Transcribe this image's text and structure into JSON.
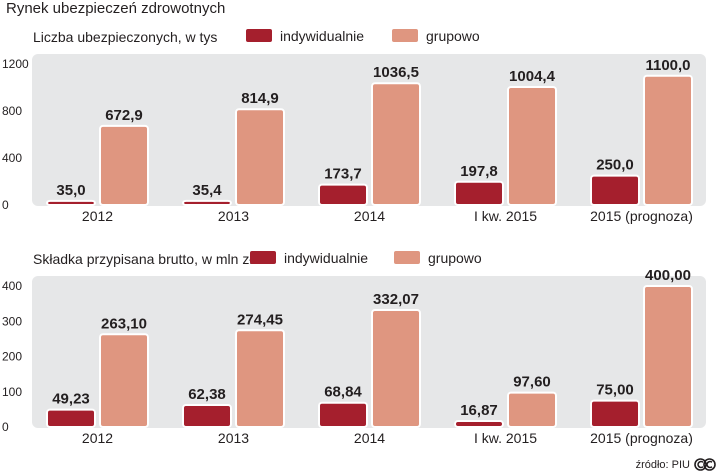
{
  "title": "Rynek ubezpieczeń zdrowotnych",
  "source": "źródło: PIU",
  "colors": {
    "individual": "#a51f2d",
    "group": "#df9680",
    "panel": "#e6e7e8",
    "text": "#231f20"
  },
  "icons": {
    "license": "cc-icon"
  },
  "chart_data": [
    {
      "type": "bar",
      "title": "Liczba ubezpieczonych, w tys",
      "categories": [
        "2012",
        "2013",
        "2014",
        "I kw. 2015",
        "2015 (prognoza)"
      ],
      "series": [
        {
          "name": "indywidualnie",
          "values": [
            35.0,
            35.4,
            173.7,
            197.8,
            250.0
          ],
          "labels": [
            "35,0",
            "35,4",
            "173,7",
            "197,8",
            "250,0"
          ]
        },
        {
          "name": "grupowo",
          "values": [
            672.9,
            814.9,
            1036.5,
            1004.4,
            1100.0
          ],
          "labels": [
            "672,9",
            "814,9",
            "1036,5",
            "1004,4",
            "1100,0"
          ]
        }
      ],
      "ylim": [
        0,
        1200
      ],
      "yticks": [
        0,
        400,
        800,
        1200
      ],
      "xlabel": "",
      "ylabel": "",
      "legend": "top"
    },
    {
      "type": "bar",
      "title": "Składka przypisana brutto, w mln zł",
      "categories": [
        "2012",
        "2013",
        "2014",
        "I kw. 2015",
        "2015 (prognoza)"
      ],
      "series": [
        {
          "name": "indywidualnie",
          "values": [
            49.23,
            62.38,
            68.84,
            16.87,
            75.0
          ],
          "labels": [
            "49,23",
            "62,38",
            "68,84",
            "16,87",
            "75,00"
          ]
        },
        {
          "name": "grupowo",
          "values": [
            263.1,
            274.45,
            332.07,
            97.6,
            400.0
          ],
          "labels": [
            "263,10",
            "274,45",
            "332,07",
            "97,60",
            "400,00"
          ]
        }
      ],
      "ylim": [
        0,
        400
      ],
      "yticks": [
        0,
        100,
        200,
        300,
        400
      ],
      "xlabel": "",
      "ylabel": "",
      "legend": "top"
    }
  ]
}
